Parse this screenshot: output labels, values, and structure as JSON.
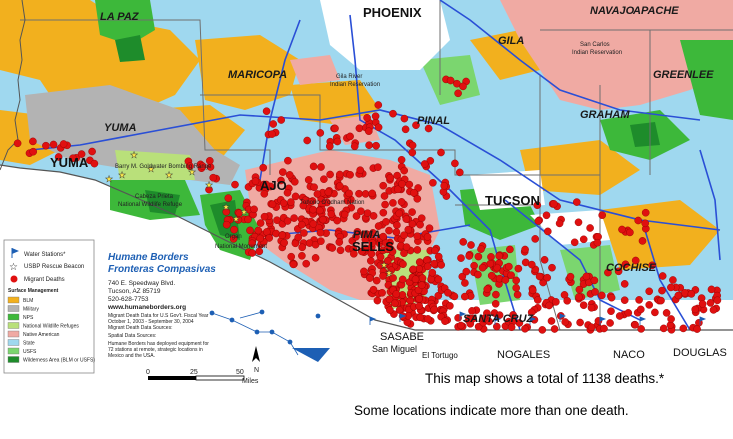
{
  "map": {
    "counties": [
      "LA PAZ",
      "MARICOPA",
      "YUMA",
      "PINAL",
      "PIMA",
      "COCHISE",
      "SANTA CRUZ",
      "GRAHAM",
      "GREENLEE",
      "GILA",
      "NAVAJO",
      "APACHE"
    ],
    "cities": {
      "phoenix": "PHOENIX",
      "tucson": "TUCSON",
      "yuma": "YUMA",
      "ajo": "AJO",
      "sells": "SELLS",
      "sasabe": "SASABE",
      "nogales": "NOGALES",
      "naco": "NACO",
      "douglas": "DOUGLAS",
      "san_miguel": "San Miguel",
      "el_tortugo": "El Tortugo"
    },
    "features": {
      "san_carlos": "San Carlos",
      "san_carlos_2": "Indian Reservation",
      "tohono": "Tohono O'odham Nation",
      "barry": "Barry M. Goldwater Bombing Range",
      "cabeza": "Cabeza Prieta",
      "cabeza_2": "National Wildlife Refuge",
      "organ": "Organ",
      "national": "National Monument",
      "gila_river": "Gila River",
      "gila_river_2": "Indian Reservation"
    }
  },
  "legend": {
    "water": "Water Stations*",
    "beacon": "USBP Rescue Beacon",
    "deaths": "Migrant Deaths",
    "surface_title": "Surface Management",
    "surface_items": [
      {
        "label": "BLM",
        "color": "#f2b01e"
      },
      {
        "label": "Military",
        "color": "#b3b3b3"
      },
      {
        "label": "NPS",
        "color": "#3db83a"
      },
      {
        "label": "National Wildlife Refuges",
        "color": "#b9e07a"
      },
      {
        "label": "Native American",
        "color": "#f0aaa3"
      },
      {
        "label": "State",
        "color": "#9fd8ef"
      },
      {
        "label": "USFS",
        "color": "#7bd66f"
      },
      {
        "label": "Wilderness Area (BLM or USFS)",
        "color": "#1e8c2b"
      }
    ]
  },
  "org": {
    "name1": "Humane Borders",
    "name2": "Fronteras Compasivas",
    "address1": "740 E. Speedway Blvd.",
    "address2": "Tucson, AZ 85719",
    "phone": "520-628-7753",
    "website": "www.humaneborders.org",
    "note1": "Migrant Death Data for U.S Gov't. Fiscal Year",
    "note2": "October 1, 2003 - September 30, 2004",
    "note3": "Migrant Death Data Sources:",
    "note4": "Spatial Data Sources:",
    "note5": "Humane Borders has deployed equipment for",
    "note6": "72 stations at remote, strategic locations in",
    "note7": "Mexico and the USA."
  },
  "scale": {
    "t0": "0",
    "t1": "25",
    "t2": "50",
    "unit": "Miles",
    "north": "N"
  },
  "captions": {
    "line1": "This map shows a total of 1138 deaths.*",
    "line2": "Some locations indicate more than one death."
  },
  "colors": {
    "blm": "#f2b01e",
    "military": "#b3b3b3",
    "nps": "#3db83a",
    "nwr": "#b9e07a",
    "native": "#f0aaa3",
    "state": "#9fd8ef",
    "usfs": "#7bd66f",
    "wilderness": "#1e8c2b",
    "private": "#ffffff",
    "death": "#e01010",
    "road": "#2a4fd6",
    "county_line": "#6f6f6f"
  }
}
